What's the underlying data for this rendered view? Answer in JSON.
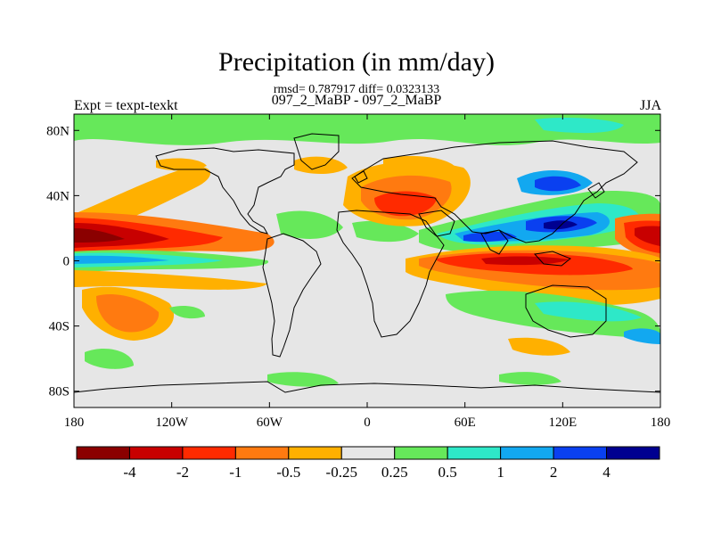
{
  "title": "Precipitation (in mm/day)",
  "stats": "rmsd= 0.787917 diff= 0.0323133",
  "comparison": "097_2_MaBP - 097_2_MaBP",
  "experiment": "Expt = texpt-texkt",
  "season": "JJA",
  "map": {
    "y_ticks": [
      {
        "label": "80N",
        "lat": 80
      },
      {
        "label": "40N",
        "lat": 40
      },
      {
        "label": "0",
        "lat": 0
      },
      {
        "label": "40S",
        "lat": -40
      },
      {
        "label": "80S",
        "lat": -80
      }
    ],
    "x_ticks": [
      {
        "label": "180",
        "lon": -180
      },
      {
        "label": "120W",
        "lon": -120
      },
      {
        "label": "60W",
        "lon": -60
      },
      {
        "label": "0",
        "lon": 0
      },
      {
        "label": "60E",
        "lon": 60
      },
      {
        "label": "120E",
        "lon": 120
      },
      {
        "label": "180",
        "lon": 180
      }
    ]
  },
  "colorbar": {
    "colors": [
      "#8b0000",
      "#c80000",
      "#ff2a00",
      "#ff7a10",
      "#ffb000",
      "#e6e6e6",
      "#66e85a",
      "#2ee8c8",
      "#12a8f0",
      "#0a40f0",
      "#000090"
    ],
    "labels": [
      "-4",
      "-2",
      "-1",
      "-0.5",
      "-0.25",
      "0.25",
      "0.5",
      "1",
      "2",
      "4"
    ]
  },
  "chart_data": {
    "type": "heatmap",
    "variable": "Precipitation difference",
    "units": "mm/day",
    "lon_range": [
      -180,
      180
    ],
    "lat_range": [
      -90,
      90
    ],
    "levels": [
      -4,
      -2,
      -1,
      -0.5,
      -0.25,
      0.25,
      0.5,
      1,
      2,
      4
    ],
    "features": [
      {
        "region": "central Pacific ITCZ (~15N, 180-140W)",
        "value": -4
      },
      {
        "region": "eastern Pacific (~15N, 150-90W)",
        "value": -1
      },
      {
        "region": "equatorial band (~5N, 180-120W)",
        "value": 1
      },
      {
        "region": "South Pacific (~30S, 160-130W)",
        "value": -0.5
      },
      {
        "region": "North Africa / Arabia (~35N, 10-40E)",
        "value": -1
      },
      {
        "region": "Indian Ocean / West Pacific (~5N, 50-180E)",
        "value": -2
      },
      {
        "region": "South Asia (~20N, 80-140E)",
        "value": 2
      },
      {
        "region": "West Pacific (~15N, 170E)",
        "value": -4
      },
      {
        "region": "Northwest Pacific (~35N, 140E)",
        "value": 1
      }
    ]
  }
}
